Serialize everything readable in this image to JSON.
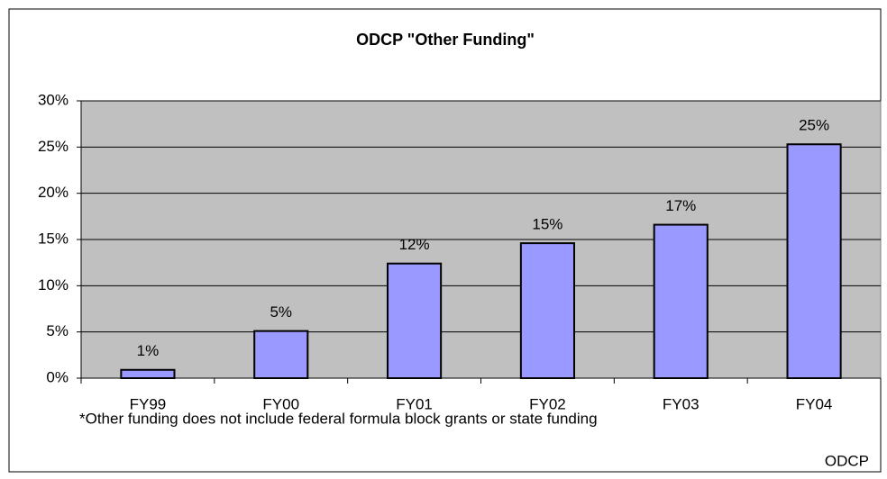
{
  "chart_data": {
    "type": "bar",
    "title": "ODCP \"Other Funding\"",
    "categories": [
      "FY99",
      "FY00",
      "FY01",
      "FY02",
      "FY03",
      "FY04"
    ],
    "values": [
      0.9,
      5.1,
      12.4,
      14.6,
      16.6,
      25.3
    ],
    "value_labels": [
      "1%",
      "5%",
      "12%",
      "15%",
      "17%",
      "25%"
    ],
    "color": "#9999ff",
    "ylim": [
      0,
      30
    ],
    "yticks": [
      {
        "value": 0,
        "label": "0%"
      },
      {
        "value": 5,
        "label": "5%"
      },
      {
        "value": 10,
        "label": "10%"
      },
      {
        "value": 15,
        "label": "15%"
      },
      {
        "value": 20,
        "label": "20%"
      },
      {
        "value": 25,
        "label": "25%"
      },
      {
        "value": 30,
        "label": "30%"
      }
    ],
    "grid": true,
    "note": "*Other funding does not include federal formula block grants or state funding",
    "source": "ODCP"
  }
}
